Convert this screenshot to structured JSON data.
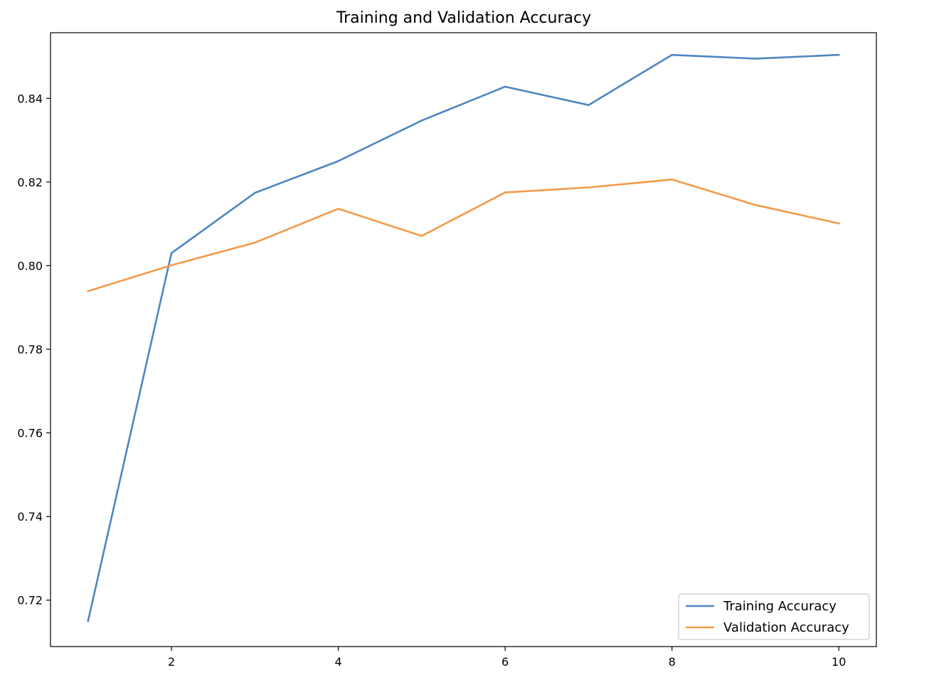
{
  "chart_data": {
    "type": "line",
    "title": "Training and Validation Accuracy",
    "xlabel": "",
    "ylabel": "",
    "x": [
      1,
      2,
      3,
      4,
      5,
      6,
      7,
      8,
      9,
      10
    ],
    "xlim": [
      0.55,
      10.45
    ],
    "ylim": [
      0.7089,
      0.8557
    ],
    "xticks": [
      2,
      4,
      6,
      8,
      10
    ],
    "xtick_labels": [
      "2",
      "4",
      "6",
      "8",
      "10"
    ],
    "yticks": [
      0.72,
      0.74,
      0.76,
      0.78,
      0.8,
      0.82,
      0.84
    ],
    "ytick_labels": [
      "0.72",
      "0.74",
      "0.76",
      "0.78",
      "0.80",
      "0.82",
      "0.84"
    ],
    "grid": false,
    "legend_position": "lower-right",
    "series": [
      {
        "name": "Training Accuracy",
        "color": "#4e86c2",
        "values": [
          0.715,
          0.803,
          0.8174,
          0.825,
          0.8347,
          0.8428,
          0.8384,
          0.8504,
          0.8495,
          0.8504
        ]
      },
      {
        "name": "Validation Accuracy",
        "color": "#f39a4a",
        "values": [
          0.7939,
          0.8001,
          0.8055,
          0.8136,
          0.8071,
          0.8175,
          0.8187,
          0.8206,
          0.8145,
          0.8101
        ]
      }
    ]
  }
}
